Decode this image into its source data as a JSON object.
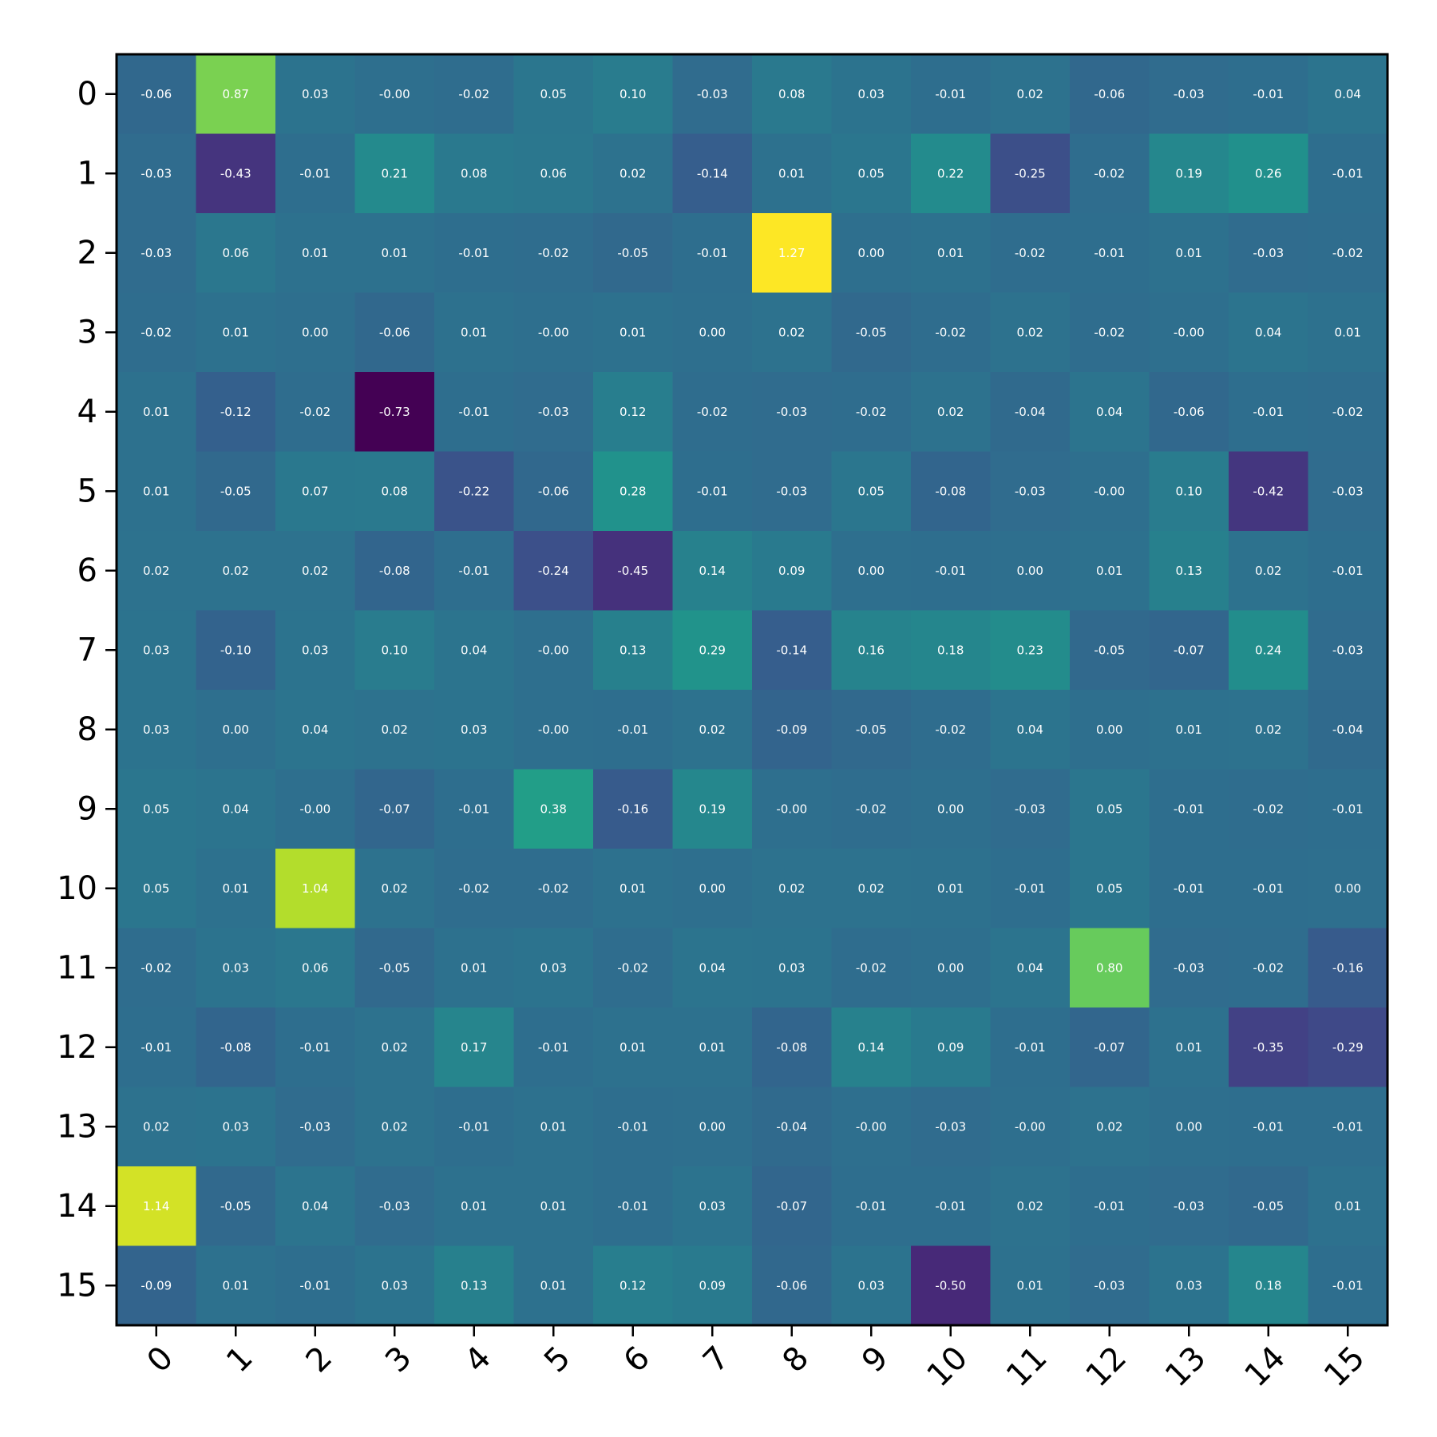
{
  "chart_data": {
    "type": "heatmap",
    "title": "",
    "xlabel": "",
    "ylabel": "",
    "x_ticks": [
      "0",
      "1",
      "2",
      "3",
      "4",
      "5",
      "6",
      "7",
      "8",
      "9",
      "10",
      "11",
      "12",
      "13",
      "14",
      "15"
    ],
    "y_ticks": [
      "0",
      "1",
      "2",
      "3",
      "4",
      "5",
      "6",
      "7",
      "8",
      "9",
      "10",
      "11",
      "12",
      "13",
      "14",
      "15"
    ],
    "colormap": "viridis",
    "color_range": [
      -0.73,
      1.27
    ],
    "colorbar": false,
    "grid": false,
    "values": [
      [
        -0.06,
        0.87,
        0.03,
        -0.0,
        -0.02,
        0.05,
        0.1,
        -0.03,
        0.08,
        0.03,
        -0.01,
        0.02,
        -0.06,
        -0.03,
        -0.01,
        0.04
      ],
      [
        -0.03,
        -0.43,
        -0.01,
        0.21,
        0.08,
        0.06,
        0.02,
        -0.14,
        0.01,
        0.05,
        0.22,
        -0.25,
        -0.02,
        0.19,
        0.26,
        -0.01
      ],
      [
        -0.03,
        0.06,
        0.01,
        0.01,
        -0.01,
        -0.02,
        -0.05,
        -0.01,
        1.27,
        0.0,
        0.01,
        -0.02,
        -0.01,
        0.01,
        -0.03,
        -0.02
      ],
      [
        -0.02,
        0.01,
        0.0,
        -0.06,
        0.01,
        -0.0,
        0.01,
        0.0,
        0.02,
        -0.05,
        -0.02,
        0.02,
        -0.02,
        -0.0,
        0.04,
        0.01
      ],
      [
        0.01,
        -0.12,
        -0.02,
        -0.73,
        -0.01,
        -0.03,
        0.12,
        -0.02,
        -0.03,
        -0.02,
        0.02,
        -0.04,
        0.04,
        -0.06,
        -0.01,
        -0.02
      ],
      [
        0.01,
        -0.05,
        0.07,
        0.08,
        -0.22,
        -0.06,
        0.28,
        -0.01,
        -0.03,
        0.05,
        -0.08,
        -0.03,
        -0.0,
        0.1,
        -0.42,
        -0.03
      ],
      [
        0.02,
        0.02,
        0.02,
        -0.08,
        -0.01,
        -0.24,
        -0.45,
        0.14,
        0.09,
        0.0,
        -0.01,
        0.0,
        0.01,
        0.13,
        0.02,
        -0.01
      ],
      [
        0.03,
        -0.1,
        0.03,
        0.1,
        0.04,
        -0.0,
        0.13,
        0.29,
        -0.14,
        0.16,
        0.18,
        0.23,
        -0.05,
        -0.07,
        0.24,
        -0.03
      ],
      [
        0.03,
        0.0,
        0.04,
        0.02,
        0.03,
        -0.0,
        -0.01,
        0.02,
        -0.09,
        -0.05,
        -0.02,
        0.04,
        0.0,
        0.01,
        0.02,
        -0.04
      ],
      [
        0.05,
        0.04,
        -0.0,
        -0.07,
        -0.01,
        0.38,
        -0.16,
        0.19,
        -0.0,
        -0.02,
        0.0,
        -0.03,
        0.05,
        -0.01,
        -0.02,
        -0.01
      ],
      [
        0.05,
        0.01,
        1.04,
        0.02,
        -0.02,
        -0.02,
        0.01,
        0.0,
        0.02,
        0.02,
        0.01,
        -0.01,
        0.05,
        -0.01,
        -0.01,
        0.0
      ],
      [
        -0.02,
        0.03,
        0.06,
        -0.05,
        0.01,
        0.03,
        -0.02,
        0.04,
        0.03,
        -0.02,
        0.0,
        0.04,
        0.8,
        -0.03,
        -0.02,
        -0.16
      ],
      [
        -0.01,
        -0.08,
        -0.01,
        0.02,
        0.17,
        -0.01,
        0.01,
        0.01,
        -0.08,
        0.14,
        0.09,
        -0.01,
        -0.07,
        0.01,
        -0.35,
        -0.29
      ],
      [
        0.02,
        0.03,
        -0.03,
        0.02,
        -0.01,
        0.01,
        -0.01,
        0.0,
        -0.04,
        -0.0,
        -0.03,
        -0.0,
        0.02,
        0.0,
        -0.01,
        -0.01
      ],
      [
        1.14,
        -0.05,
        0.04,
        -0.03,
        0.01,
        0.01,
        -0.01,
        0.03,
        -0.07,
        -0.01,
        -0.01,
        0.02,
        -0.01,
        -0.03,
        -0.05,
        0.01
      ],
      [
        -0.09,
        0.01,
        -0.01,
        0.03,
        0.13,
        0.01,
        0.12,
        0.09,
        -0.06,
        0.03,
        -0.5,
        0.01,
        -0.03,
        0.03,
        0.18,
        -0.01
      ]
    ]
  }
}
